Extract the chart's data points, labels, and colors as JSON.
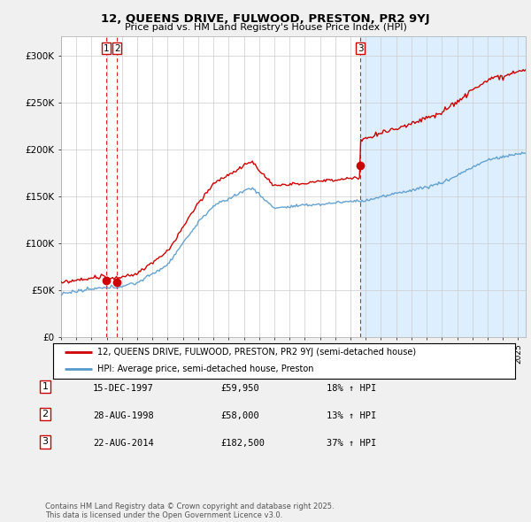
{
  "title": "12, QUEENS DRIVE, FULWOOD, PRESTON, PR2 9YJ",
  "subtitle": "Price paid vs. HM Land Registry's House Price Index (HPI)",
  "bg_color": "#f0f0f0",
  "plot_bg_color": "#ffffff",
  "plot_shaded_bg": "#ddeeff",
  "hpi_line_color": "#5599cc",
  "price_line_color": "#cc0000",
  "sale_dot_color": "#cc0000",
  "vline_color": "#cc0000",
  "sale_dec_years": [
    1997.958,
    1998.667,
    2014.639
  ],
  "sale_prices": [
    59950,
    58000,
    182500
  ],
  "sale_labels": [
    "1",
    "2",
    "3"
  ],
  "legend_entries": [
    "12, QUEENS DRIVE, FULWOOD, PRESTON, PR2 9YJ (semi-detached house)",
    "HPI: Average price, semi-detached house, Preston"
  ],
  "table_rows": [
    [
      "1",
      "15-DEC-1997",
      "£59,950",
      "18% ↑ HPI"
    ],
    [
      "2",
      "28-AUG-1998",
      "£58,000",
      "13% ↑ HPI"
    ],
    [
      "3",
      "22-AUG-2014",
      "£182,500",
      "37% ↑ HPI"
    ]
  ],
  "footer": "Contains HM Land Registry data © Crown copyright and database right 2025.\nThis data is licensed under the Open Government Licence v3.0.",
  "ylim": [
    0,
    320000
  ],
  "yticks": [
    0,
    50000,
    100000,
    150000,
    200000,
    250000,
    300000
  ],
  "ytick_labels": [
    "£0",
    "£50K",
    "£100K",
    "£150K",
    "£200K",
    "£250K",
    "£300K"
  ],
  "xlim": [
    1995.0,
    2025.5
  ],
  "xtick_years": [
    1995,
    1996,
    1997,
    1998,
    1999,
    2000,
    2001,
    2002,
    2003,
    2004,
    2005,
    2006,
    2007,
    2008,
    2009,
    2010,
    2011,
    2012,
    2013,
    2014,
    2015,
    2016,
    2017,
    2018,
    2019,
    2020,
    2021,
    2022,
    2023,
    2024,
    2025
  ]
}
